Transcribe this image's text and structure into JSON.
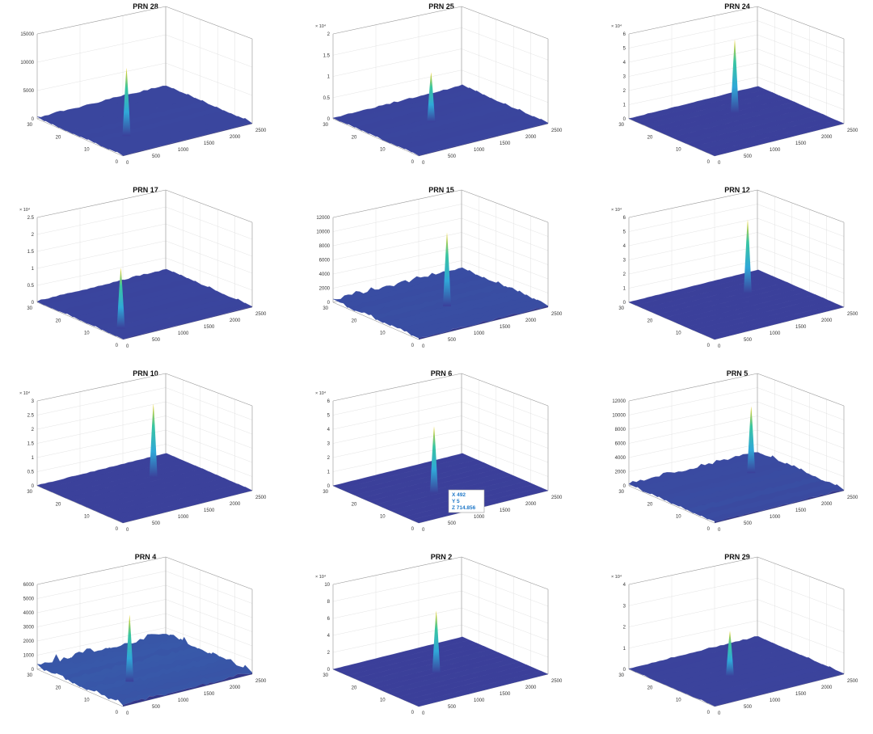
{
  "colors": {
    "base": "#3b3f9a",
    "mid": "#2fa8d8",
    "high": "#39c6a0",
    "peak": "#f0d020",
    "grid": "#dcdcdc",
    "axis": "#9a9a9a"
  },
  "chart_data": [
    {
      "type": "surface",
      "title": "PRN 28",
      "exponent": "",
      "zlim": [
        0,
        15000
      ],
      "zticks": [
        "0",
        "5000",
        "10000",
        "15000"
      ],
      "xticks": [
        "0",
        "500",
        "1000",
        "1500",
        "2000",
        "2500"
      ],
      "yticks": [
        "0",
        "10",
        "20",
        "30"
      ],
      "peak": {
        "x": 0.28,
        "y": 0.62,
        "value": 11500
      },
      "noise": 0.15
    },
    {
      "type": "surface",
      "title": "PRN 25",
      "exponent": "× 10⁴",
      "zlim": [
        0,
        2
      ],
      "zticks": [
        "0",
        "0.5",
        "1",
        "1.5",
        "2"
      ],
      "xticks": [
        "0",
        "500",
        "1000",
        "1500",
        "2000",
        "2500"
      ],
      "yticks": [
        "0",
        "10",
        "20",
        "30"
      ],
      "peak": {
        "x": 0.48,
        "y": 0.42,
        "value": 1.1
      },
      "noise": 0.12
    },
    {
      "type": "surface",
      "title": "PRN 24",
      "exponent": "× 10⁴",
      "zlim": [
        0,
        6
      ],
      "zticks": [
        "0",
        "1",
        "2",
        "3",
        "4",
        "5",
        "6"
      ],
      "xticks": [
        "0",
        "500",
        "1000",
        "1500",
        "2000",
        "2500"
      ],
      "yticks": [
        "0",
        "10",
        "20",
        "30"
      ],
      "peak": {
        "x": 0.62,
        "y": 0.3,
        "value": 5
      },
      "noise": 0.03
    },
    {
      "type": "surface",
      "title": "PRN 17",
      "exponent": "× 10⁴",
      "zlim": [
        0,
        2.5
      ],
      "zticks": [
        "0",
        "0.5",
        "1",
        "1.5",
        "2",
        "2.5"
      ],
      "xticks": [
        "0",
        "500",
        "1000",
        "1500",
        "2000",
        "2500"
      ],
      "yticks": [
        "0",
        "10",
        "20",
        "30"
      ],
      "peak": {
        "x": 0.15,
        "y": 0.75,
        "value": 1.7
      },
      "noise": 0.12
    },
    {
      "type": "surface",
      "title": "PRN 15",
      "exponent": "",
      "zlim": [
        0,
        12000
      ],
      "zticks": [
        "0",
        "2000",
        "4000",
        "6000",
        "8000",
        "10000",
        "12000"
      ],
      "xticks": [
        "0",
        "500",
        "1000",
        "1500",
        "2000",
        "2500"
      ],
      "yticks": [
        "0",
        "10",
        "20",
        "30"
      ],
      "peak": {
        "x": 0.55,
        "y": 0.5,
        "value": 10000
      },
      "noise": 0.3
    },
    {
      "type": "surface",
      "title": "PRN 12",
      "exponent": "× 10⁴",
      "zlim": [
        0,
        6
      ],
      "zticks": [
        "0",
        "1",
        "2",
        "3",
        "4",
        "5",
        "6"
      ],
      "xticks": [
        "0",
        "500",
        "1000",
        "1500",
        "2000",
        "2500"
      ],
      "yticks": [
        "0",
        "10",
        "20",
        "30"
      ],
      "peak": {
        "x": 0.72,
        "y": 0.3,
        "value": 5
      },
      "noise": 0.02
    },
    {
      "type": "surface",
      "title": "PRN 10",
      "exponent": "× 10⁴",
      "zlim": [
        0,
        3
      ],
      "zticks": [
        "0",
        "0.5",
        "1",
        "1.5",
        "2",
        "2.5",
        "3"
      ],
      "xticks": [
        "0",
        "500",
        "1000",
        "1500",
        "2000",
        "2500"
      ],
      "yticks": [
        "0",
        "10",
        "20",
        "30"
      ],
      "peak": {
        "x": 0.7,
        "y": 0.3,
        "value": 2.5
      },
      "noise": 0.04
    },
    {
      "type": "surface",
      "title": "PRN 6",
      "exponent": "× 10⁴",
      "zlim": [
        0,
        6
      ],
      "zticks": [
        "0",
        "1",
        "2",
        "3",
        "4",
        "5",
        "6"
      ],
      "xticks": [
        "0",
        "500",
        "1000",
        "1500",
        "2000",
        "2500"
      ],
      "yticks": [
        "0",
        "10",
        "20",
        "30"
      ],
      "peak": {
        "x": 0.45,
        "y": 0.5,
        "value": 4.5
      },
      "noise": 0.01,
      "tooltip": {
        "x": "X 492",
        "y": "Y 5",
        "z": "Z 714.856"
      }
    },
    {
      "type": "surface",
      "title": "PRN 5",
      "exponent": "",
      "zlim": [
        0,
        12000
      ],
      "zticks": [
        "0",
        "2000",
        "4000",
        "6000",
        "8000",
        "10000",
        "12000"
      ],
      "xticks": [
        "0",
        "500",
        "1000",
        "1500",
        "2000",
        "2500"
      ],
      "yticks": [
        "0",
        "10",
        "20",
        "30"
      ],
      "peak": {
        "x": 0.78,
        "y": 0.25,
        "value": 9000
      },
      "noise": 0.25
    },
    {
      "type": "surface",
      "title": "PRN 4",
      "exponent": "",
      "zlim": [
        0,
        6000
      ],
      "zticks": [
        "0",
        "1000",
        "2000",
        "3000",
        "4000",
        "5000",
        "6000"
      ],
      "xticks": [
        "0",
        "500",
        "1000",
        "1500",
        "2000",
        "2500"
      ],
      "yticks": [
        "0",
        "10",
        "20",
        "30"
      ],
      "peak": {
        "x": 0.35,
        "y": 0.55,
        "value": 4500
      },
      "noise": 0.5
    },
    {
      "type": "surface",
      "title": "PRN 2",
      "exponent": "× 10⁴",
      "zlim": [
        0,
        10
      ],
      "zticks": [
        "0",
        "2",
        "4",
        "6",
        "8",
        "10"
      ],
      "xticks": [
        "0",
        "500",
        "1000",
        "1500",
        "2000",
        "2500"
      ],
      "yticks": [
        "0",
        "10",
        "20",
        "30"
      ],
      "peak": {
        "x": 0.5,
        "y": 0.45,
        "value": 7
      },
      "noise": 0.01
    },
    {
      "type": "surface",
      "title": "PRN 29",
      "exponent": "× 10⁴",
      "zlim": [
        0,
        4
      ],
      "zticks": [
        "0",
        "1",
        "2",
        "3",
        "4"
      ],
      "xticks": [
        "0",
        "500",
        "1000",
        "1500",
        "2000",
        "2500"
      ],
      "yticks": [
        "0",
        "10",
        "20",
        "30"
      ],
      "peak": {
        "x": 0.45,
        "y": 0.5,
        "value": 2
      },
      "noise": 0.08
    }
  ]
}
